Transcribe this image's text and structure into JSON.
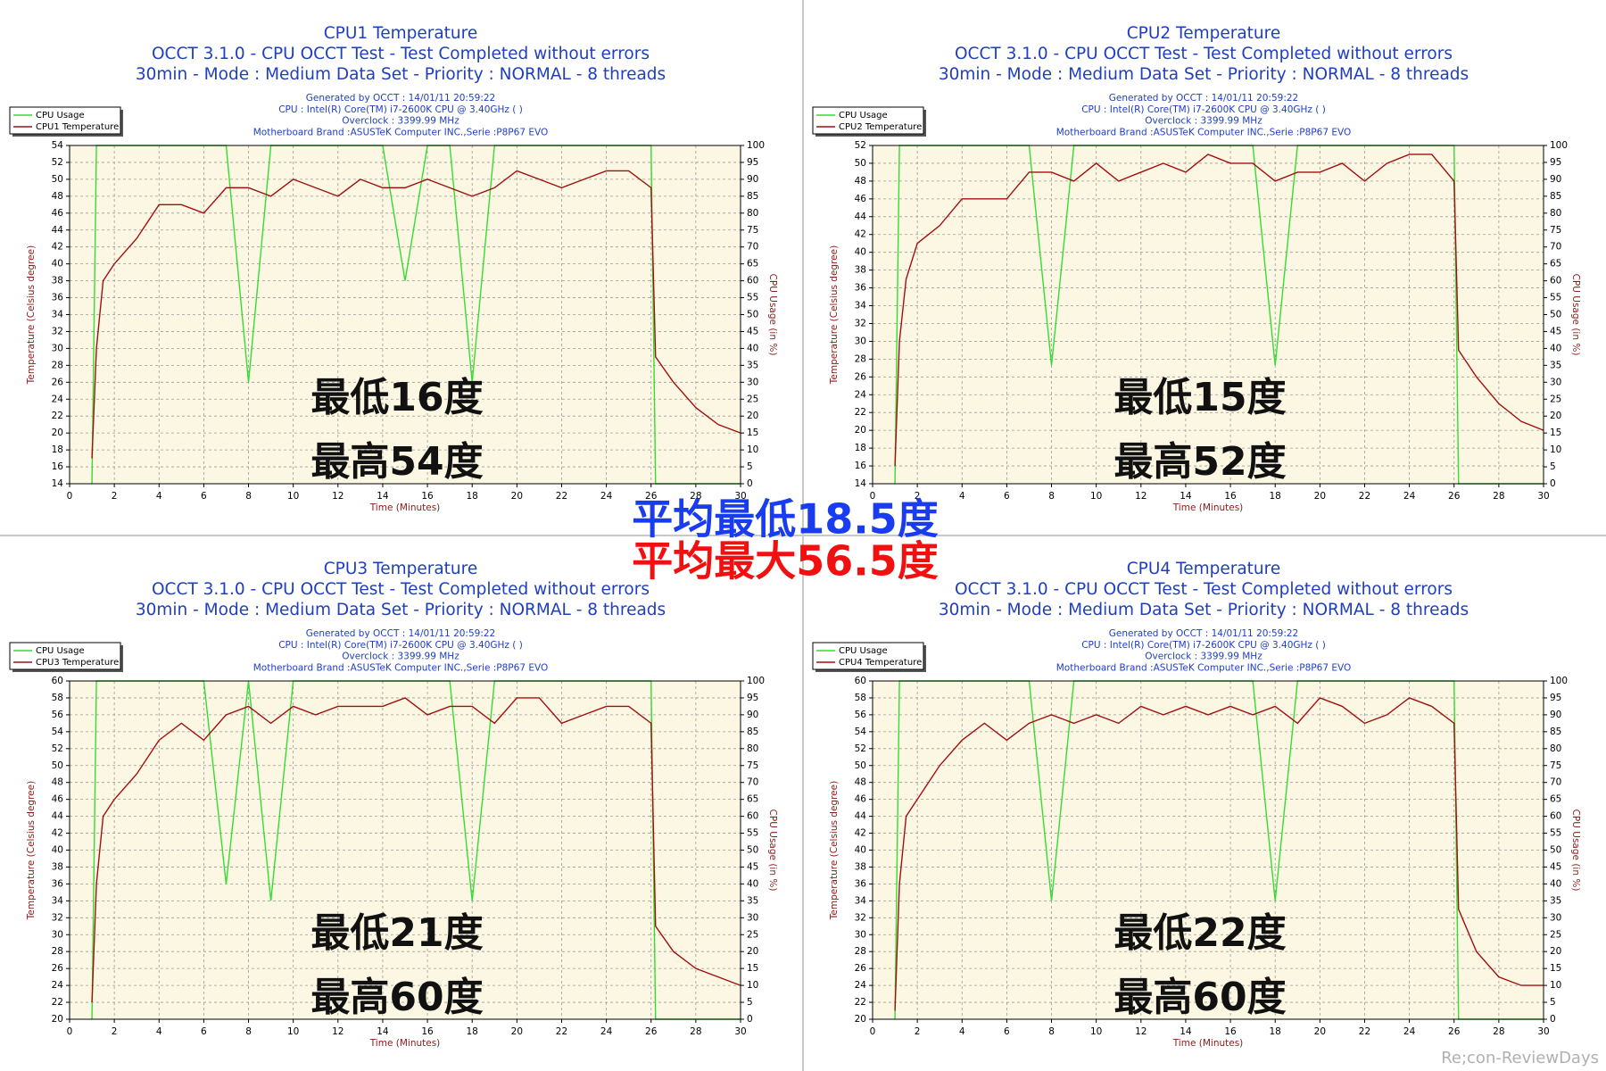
{
  "chart_data": [
    {
      "type": "line",
      "title": "CPU1 Temperature",
      "subtitle": [
        "OCCT 3.1.0 - CPU OCCT Test - Test Completed without errors",
        "30min - Mode : Medium Data Set - Priority : NORMAL - 8 threads"
      ],
      "info": [
        "Generated by OCCT : 14/01/11 20:59:22",
        "CPU : Intel(R) Core(TM) i7-2600K CPU @ 3.40GHz (  )",
        "Overclock : 3399.99 MHz",
        "Motherboard Brand :ASUSTeK Computer INC.,Serie :P8P67 EVO"
      ],
      "xlabel": "Time (Minutes)",
      "ylabel": "Temperature (Celsius degree)",
      "y2label": "CPU Usage (in %)",
      "annotations": [
        "最低16度",
        "最高54度"
      ],
      "legend": "upper left",
      "grid": true,
      "x": [
        1,
        1.2,
        1.5,
        2,
        3,
        4,
        5,
        6,
        7,
        8,
        9,
        10,
        11,
        12,
        13,
        14,
        15,
        16,
        17,
        18,
        19,
        20,
        21,
        22,
        23,
        24,
        25,
        26,
        26.2,
        27,
        28,
        29,
        30
      ],
      "series": [
        {
          "name": "CPU Usage",
          "color": "#33dd33",
          "axis": "y2",
          "values": [
            0,
            100,
            100,
            100,
            100,
            100,
            100,
            100,
            100,
            30,
            100,
            100,
            100,
            100,
            100,
            100,
            60,
            100,
            100,
            30,
            100,
            100,
            100,
            100,
            100,
            100,
            100,
            100,
            0,
            0,
            0,
            0,
            0
          ]
        },
        {
          "name": "CPU1 Temperature",
          "color": "#a01010",
          "values": [
            17,
            30,
            38,
            40,
            43,
            47,
            47,
            46,
            49,
            49,
            48,
            50,
            49,
            48,
            50,
            49,
            49,
            50,
            49,
            48,
            49,
            51,
            50,
            49,
            50,
            51,
            51,
            49,
            29,
            26,
            23,
            21,
            20
          ]
        }
      ],
      "xlim": [
        0,
        30
      ],
      "xticks": [
        0,
        2,
        4,
        6,
        8,
        10,
        12,
        14,
        16,
        18,
        20,
        22,
        24,
        26,
        28,
        30
      ],
      "ylim": [
        14,
        54
      ],
      "yticks": [
        14,
        16,
        18,
        20,
        22,
        24,
        26,
        28,
        30,
        32,
        34,
        36,
        38,
        40,
        42,
        44,
        46,
        48,
        50,
        52,
        54
      ],
      "y2lim": [
        0,
        100
      ],
      "y2ticks": [
        0,
        5,
        10,
        15,
        20,
        25,
        30,
        35,
        40,
        45,
        50,
        55,
        60,
        65,
        70,
        75,
        80,
        85,
        90,
        95,
        100
      ]
    },
    {
      "type": "line",
      "title": "CPU2 Temperature",
      "subtitle": [
        "OCCT 3.1.0 - CPU OCCT Test - Test Completed without errors",
        "30min - Mode : Medium Data Set - Priority : NORMAL - 8 threads"
      ],
      "info": [
        "Generated by OCCT : 14/01/11 20:59:22",
        "CPU : Intel(R) Core(TM) i7-2600K CPU @ 3.40GHz (  )",
        "Overclock : 3399.99 MHz",
        "Motherboard Brand :ASUSTeK Computer INC.,Serie :P8P67 EVO"
      ],
      "xlabel": "Time (Minutes)",
      "ylabel": "Temperature (Celsius degree)",
      "y2label": "CPU Usage (in %)",
      "annotations": [
        "最低15度",
        "最高52度"
      ],
      "legend": "upper left",
      "grid": true,
      "x": [
        1,
        1.2,
        1.5,
        2,
        3,
        4,
        5,
        6,
        7,
        8,
        9,
        10,
        11,
        12,
        13,
        14,
        15,
        16,
        17,
        18,
        19,
        20,
        21,
        22,
        23,
        24,
        25,
        26,
        26.2,
        27,
        28,
        29,
        30
      ],
      "series": [
        {
          "name": "CPU Usage",
          "color": "#33dd33",
          "axis": "y2",
          "values": [
            0,
            100,
            100,
            100,
            100,
            100,
            100,
            100,
            100,
            35,
            100,
            100,
            100,
            100,
            100,
            100,
            100,
            100,
            100,
            35,
            100,
            100,
            100,
            100,
            100,
            100,
            100,
            100,
            0,
            0,
            0,
            0,
            0
          ]
        },
        {
          "name": "CPU2 Temperature",
          "color": "#a01010",
          "values": [
            16,
            30,
            37,
            41,
            43,
            46,
            46,
            46,
            49,
            49,
            48,
            50,
            48,
            49,
            50,
            49,
            51,
            50,
            50,
            48,
            49,
            49,
            50,
            48,
            50,
            51,
            51,
            48,
            29,
            26,
            23,
            21,
            20
          ]
        }
      ],
      "xlim": [
        0,
        30
      ],
      "xticks": [
        0,
        2,
        4,
        6,
        8,
        10,
        12,
        14,
        16,
        18,
        20,
        22,
        24,
        26,
        28,
        30
      ],
      "ylim": [
        14,
        52
      ],
      "yticks": [
        14,
        16,
        18,
        20,
        22,
        24,
        26,
        28,
        30,
        32,
        34,
        36,
        38,
        40,
        42,
        44,
        46,
        48,
        50,
        52
      ],
      "y2lim": [
        0,
        100
      ],
      "y2ticks": [
        0,
        5,
        10,
        15,
        20,
        25,
        30,
        35,
        40,
        45,
        50,
        55,
        60,
        65,
        70,
        75,
        80,
        85,
        90,
        95,
        100
      ]
    },
    {
      "type": "line",
      "title": "CPU3 Temperature",
      "subtitle": [
        "OCCT 3.1.0 - CPU OCCT Test - Test Completed without errors",
        "30min - Mode : Medium Data Set - Priority : NORMAL - 8 threads"
      ],
      "info": [
        "Generated by OCCT : 14/01/11 20:59:22",
        "CPU : Intel(R) Core(TM) i7-2600K CPU @ 3.40GHz (  )",
        "Overclock : 3399.99 MHz",
        "Motherboard Brand :ASUSTeK Computer INC.,Serie :P8P67 EVO"
      ],
      "xlabel": "Time (Minutes)",
      "ylabel": "Temperature (Celsius degree)",
      "y2label": "CPU Usage (in %)",
      "annotations": [
        "最低21度",
        "最高60度"
      ],
      "legend": "upper left",
      "grid": true,
      "x": [
        1,
        1.2,
        1.5,
        2,
        3,
        4,
        5,
        6,
        7,
        8,
        9,
        10,
        11,
        12,
        13,
        14,
        15,
        16,
        17,
        18,
        19,
        20,
        21,
        22,
        23,
        24,
        25,
        26,
        26.2,
        27,
        28,
        29,
        30
      ],
      "series": [
        {
          "name": "CPU Usage",
          "color": "#33dd33",
          "axis": "y2",
          "values": [
            0,
            100,
            100,
            100,
            100,
            100,
            100,
            100,
            40,
            100,
            35,
            100,
            100,
            100,
            100,
            100,
            100,
            100,
            100,
            35,
            100,
            100,
            100,
            100,
            100,
            100,
            100,
            100,
            0,
            0,
            0,
            0,
            0
          ]
        },
        {
          "name": "CPU3 Temperature",
          "color": "#a01010",
          "values": [
            22,
            36,
            44,
            46,
            49,
            53,
            55,
            53,
            56,
            57,
            55,
            57,
            56,
            57,
            57,
            57,
            58,
            56,
            57,
            57,
            55,
            58,
            58,
            55,
            56,
            57,
            57,
            55,
            31,
            28,
            26,
            25,
            24
          ]
        }
      ],
      "xlim": [
        0,
        30
      ],
      "xticks": [
        0,
        2,
        4,
        6,
        8,
        10,
        12,
        14,
        16,
        18,
        20,
        22,
        24,
        26,
        28,
        30
      ],
      "ylim": [
        20,
        60
      ],
      "yticks": [
        20,
        22,
        24,
        26,
        28,
        30,
        32,
        34,
        36,
        38,
        40,
        42,
        44,
        46,
        48,
        50,
        52,
        54,
        56,
        58,
        60
      ],
      "y2lim": [
        0,
        100
      ],
      "y2ticks": [
        0,
        5,
        10,
        15,
        20,
        25,
        30,
        35,
        40,
        45,
        50,
        55,
        60,
        65,
        70,
        75,
        80,
        85,
        90,
        95,
        100
      ]
    },
    {
      "type": "line",
      "title": "CPU4 Temperature",
      "subtitle": [
        "OCCT 3.1.0 - CPU OCCT Test - Test Completed without errors",
        "30min - Mode : Medium Data Set - Priority : NORMAL - 8 threads"
      ],
      "info": [
        "Generated by OCCT : 14/01/11 20:59:22",
        "CPU : Intel(R) Core(TM) i7-2600K CPU @ 3.40GHz (  )",
        "Overclock : 3399.99 MHz",
        "Motherboard Brand :ASUSTeK Computer INC.,Serie :P8P67 EVO"
      ],
      "xlabel": "Time (Minutes)",
      "ylabel": "Temperature (Celsius degree)",
      "y2label": "CPU Usage (in %)",
      "annotations": [
        "最低22度",
        "最高60度"
      ],
      "legend": "upper left",
      "grid": true,
      "x": [
        1,
        1.2,
        1.5,
        2,
        3,
        4,
        5,
        6,
        7,
        8,
        9,
        10,
        11,
        12,
        13,
        14,
        15,
        16,
        17,
        18,
        19,
        20,
        21,
        22,
        23,
        24,
        25,
        26,
        26.2,
        27,
        28,
        29,
        30
      ],
      "series": [
        {
          "name": "CPU Usage",
          "color": "#33dd33",
          "axis": "y2",
          "values": [
            0,
            100,
            100,
            100,
            100,
            100,
            100,
            100,
            100,
            35,
            100,
            100,
            100,
            100,
            100,
            100,
            100,
            100,
            100,
            35,
            100,
            100,
            100,
            100,
            100,
            100,
            100,
            100,
            0,
            0,
            0,
            0,
            0
          ]
        },
        {
          "name": "CPU4 Temperature",
          "color": "#a01010",
          "values": [
            21,
            36,
            44,
            46,
            50,
            53,
            55,
            53,
            55,
            56,
            55,
            56,
            55,
            57,
            56,
            57,
            56,
            57,
            56,
            57,
            55,
            58,
            57,
            55,
            56,
            58,
            57,
            55,
            33,
            28,
            25,
            24,
            24
          ]
        }
      ],
      "xlim": [
        0,
        30
      ],
      "xticks": [
        0,
        2,
        4,
        6,
        8,
        10,
        12,
        14,
        16,
        18,
        20,
        22,
        24,
        26,
        28,
        30
      ],
      "ylim": [
        20,
        60
      ],
      "yticks": [
        20,
        22,
        24,
        26,
        28,
        30,
        32,
        34,
        36,
        38,
        40,
        42,
        44,
        46,
        48,
        50,
        52,
        54,
        56,
        58,
        60
      ],
      "y2lim": [
        0,
        100
      ],
      "y2ticks": [
        0,
        5,
        10,
        15,
        20,
        25,
        30,
        35,
        40,
        45,
        50,
        55,
        60,
        65,
        70,
        75,
        80,
        85,
        90,
        95,
        100
      ]
    }
  ],
  "overlay": {
    "average_min": "平均最低18.5度",
    "average_max": "平均最大56.5度",
    "watermark": "Re;con-ReviewDays"
  }
}
